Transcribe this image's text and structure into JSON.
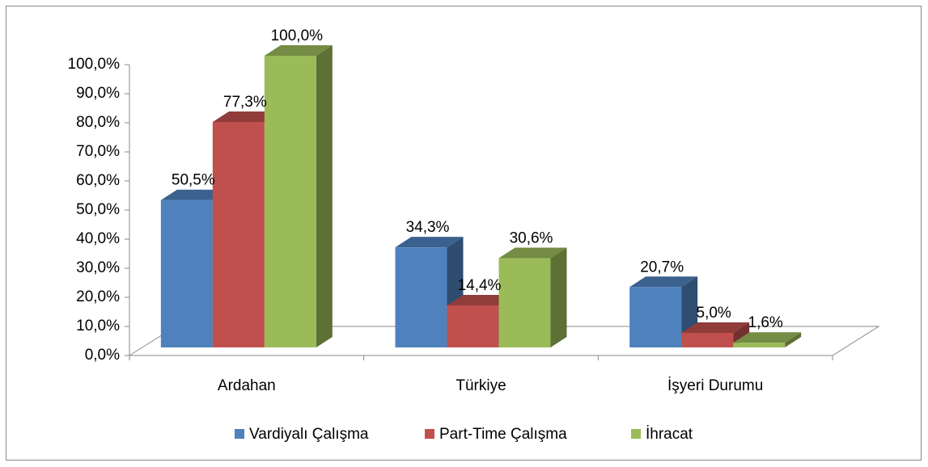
{
  "chart_data": {
    "type": "bar",
    "categories": [
      "Ardahan",
      "Türkiye",
      "İşyeri Durumu"
    ],
    "series": [
      {
        "name": "Vardiyalı Çalışma",
        "color": "#4f81bd",
        "values": [
          50.5,
          34.3,
          20.7
        ],
        "value_labels": [
          "50,5%",
          "34,3%",
          "20,7%"
        ]
      },
      {
        "name": "Part-Time Çalışma",
        "color": "#c0504d",
        "values": [
          77.3,
          14.4,
          5.0
        ],
        "value_labels": [
          "77,3%",
          "14,4%",
          "5,0%"
        ]
      },
      {
        "name": "İhracat",
        "color": "#9bbb59",
        "values": [
          100.0,
          30.6,
          1.6
        ],
        "value_labels": [
          "100,0%",
          "30,6%",
          "1,6%"
        ]
      }
    ],
    "ylim": [
      0,
      100
    ],
    "yticks": [
      {
        "value": 0,
        "label": "0,0%"
      },
      {
        "value": 10,
        "label": "10,0%"
      },
      {
        "value": 20,
        "label": "20,0%"
      },
      {
        "value": 30,
        "label": "30,0%"
      },
      {
        "value": 40,
        "label": "40,0%"
      },
      {
        "value": 50,
        "label": "50,0%"
      },
      {
        "value": 60,
        "label": "60,0%"
      },
      {
        "value": 70,
        "label": "70,0%"
      },
      {
        "value": 80,
        "label": "80,0%"
      },
      {
        "value": 90,
        "label": "90,0%"
      },
      {
        "value": 100,
        "label": "100,0%"
      }
    ],
    "legend": "bottom"
  }
}
